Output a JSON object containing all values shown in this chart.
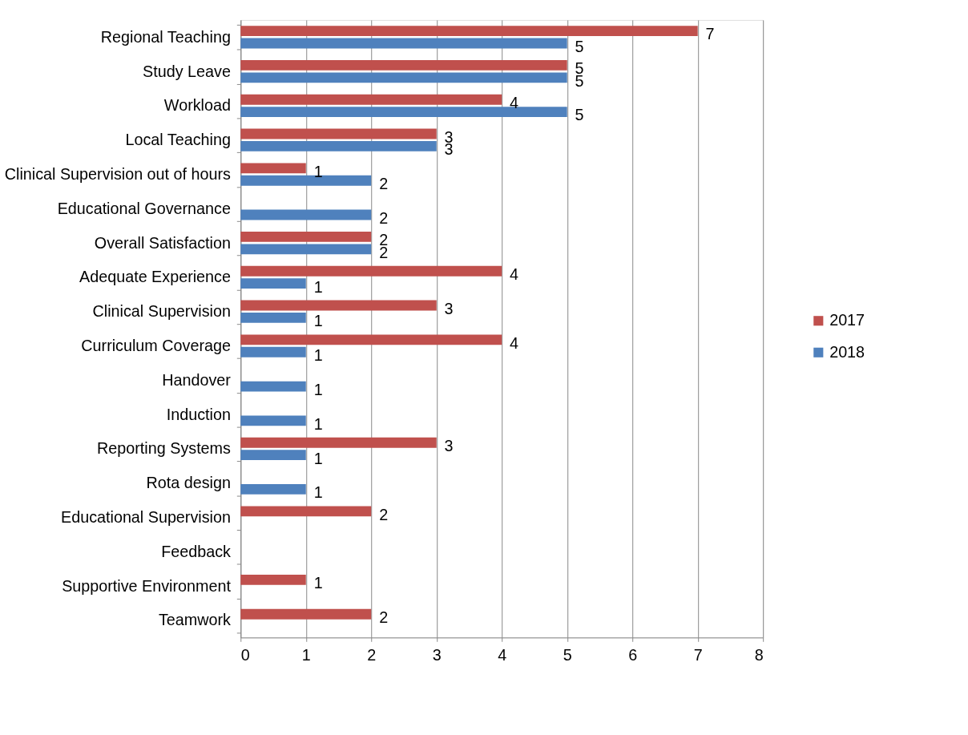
{
  "chart_data": {
    "type": "bar",
    "orientation": "horizontal",
    "categories": [
      "Regional Teaching",
      "Study Leave",
      "Workload",
      "Local Teaching",
      "Clinical Supervision out of hours",
      "Educational Governance",
      "Overall Satisfaction",
      "Adequate Experience",
      "Clinical Supervision",
      "Curriculum Coverage",
      "Handover",
      "Induction",
      "Reporting Systems",
      "Rota design",
      "Educational Supervision",
      "Feedback",
      "Supportive Environment",
      "Teamwork"
    ],
    "series": [
      {
        "name": "2017",
        "color": "#c0504d",
        "values": [
          7,
          5,
          4,
          3,
          1,
          null,
          2,
          4,
          3,
          4,
          null,
          null,
          3,
          null,
          2,
          null,
          1,
          2
        ]
      },
      {
        "name": "2018",
        "color": "#4f81bd",
        "values": [
          5,
          5,
          5,
          3,
          2,
          2,
          2,
          1,
          1,
          1,
          1,
          1,
          1,
          1,
          null,
          null,
          null,
          null
        ]
      }
    ],
    "xlim": [
      0,
      8
    ],
    "xticks": [
      0,
      1,
      2,
      3,
      4,
      5,
      6,
      7,
      8
    ],
    "grid": "x",
    "legend": "right",
    "data_labels": true
  }
}
